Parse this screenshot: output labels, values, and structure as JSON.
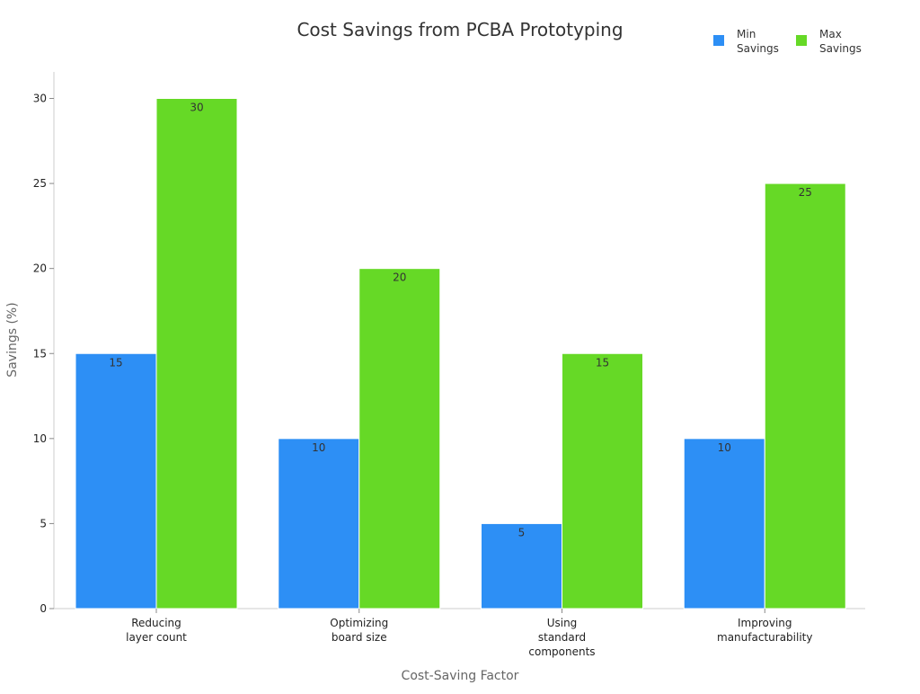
{
  "chart_data": {
    "type": "bar",
    "title": "Cost Savings from PCBA Prototyping",
    "xlabel": "Cost-Saving Factor",
    "ylabel": "Savings (%)",
    "categories": [
      [
        "Reducing",
        "layer count"
      ],
      [
        "Optimizing",
        "board size"
      ],
      [
        "Using",
        "standard",
        "components"
      ],
      [
        "Improving",
        "manufacturability"
      ]
    ],
    "series": [
      {
        "name": [
          "Min",
          "Savings"
        ],
        "color": "#2d8ff5",
        "values": [
          15,
          10,
          5,
          10
        ]
      },
      {
        "name": [
          "Max",
          "Savings"
        ],
        "color": "#66d926",
        "values": [
          30,
          20,
          15,
          25
        ]
      }
    ],
    "ylim": [
      0,
      31.5
    ],
    "yticks": [
      0,
      5,
      10,
      15,
      20,
      25,
      30
    ],
    "grid": false,
    "legend_position": "top-right"
  }
}
